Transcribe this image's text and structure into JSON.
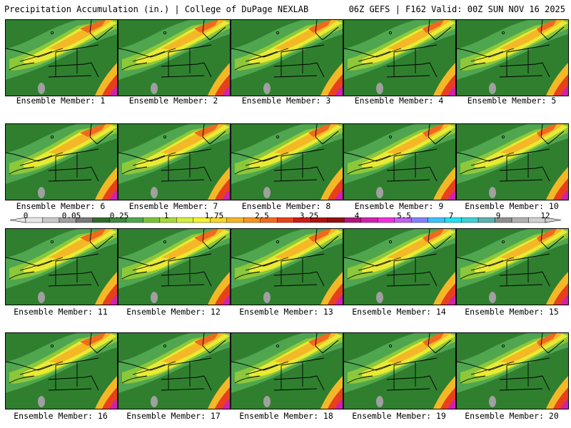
{
  "header": {
    "title": "Precipitation Accumulation (in.) | College of DuPage NEXLAB",
    "run_info": "06Z GEFS | F162 Valid: 00Z SUN NOV 16 2025"
  },
  "panels": [
    {
      "label": "Ensemble Member: 1"
    },
    {
      "label": "Ensemble Member: 2"
    },
    {
      "label": "Ensemble Member: 3"
    },
    {
      "label": "Ensemble Member: 4"
    },
    {
      "label": "Ensemble Member: 5"
    },
    {
      "label": "Ensemble Member: 6"
    },
    {
      "label": "Ensemble Member: 7"
    },
    {
      "label": "Ensemble Member: 8"
    },
    {
      "label": "Ensemble Member: 9"
    },
    {
      "label": "Ensemble Member: 10"
    },
    {
      "label": "Ensemble Member: 11"
    },
    {
      "label": "Ensemble Member: 12"
    },
    {
      "label": "Ensemble Member: 13"
    },
    {
      "label": "Ensemble Member: 14"
    },
    {
      "label": "Ensemble Member: 15"
    },
    {
      "label": "Ensemble Member: 16"
    },
    {
      "label": "Ensemble Member: 17"
    },
    {
      "label": "Ensemble Member: 18"
    },
    {
      "label": "Ensemble Member: 19"
    },
    {
      "label": "Ensemble Member: 20"
    }
  ],
  "colorbar": {
    "tick_labels": [
      "0",
      "0.05",
      "0.25",
      "1",
      "1.75",
      "2.5",
      "3.25",
      "4",
      "5.5",
      "7",
      "9",
      "12"
    ],
    "colors": [
      "#e6e6e6",
      "#c8c8c8",
      "#a0a0a0",
      "#787878",
      "#2f6b2f",
      "#3d8a3d",
      "#4fa64f",
      "#7cc23a",
      "#a8d93a",
      "#d7ee3a",
      "#f2f230",
      "#f6d62a",
      "#f6b426",
      "#f49422",
      "#f26a1e",
      "#e8401c",
      "#d01a1a",
      "#b01010",
      "#901010",
      "#b0187a",
      "#d020b0",
      "#f030e0",
      "#c060f0",
      "#8080ff",
      "#40c0ff",
      "#20e0f0",
      "#40d0d0",
      "#60b0b0",
      "#909090",
      "#b0b0b0",
      "#d0d0d0"
    ]
  }
}
